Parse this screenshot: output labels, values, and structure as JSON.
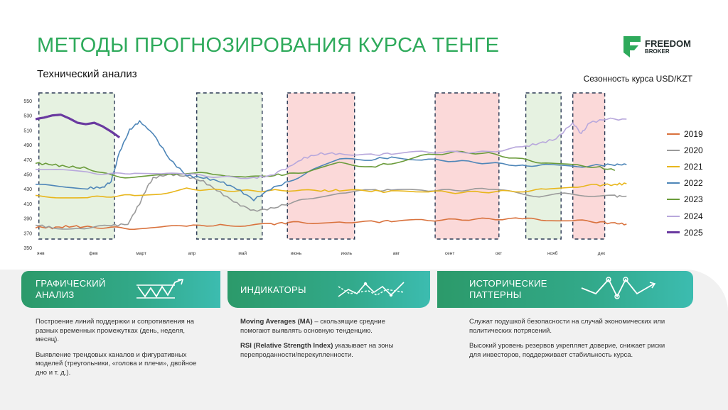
{
  "slide": {
    "title": "МЕТОДЫ ПРОГНОЗИРОВАНИЯ КУРСА ТЕНГЕ",
    "subtitle": "Технический анализ",
    "chart_caption": "Сезонность курса USD/KZT"
  },
  "logo": {
    "line1": "FREEDOM",
    "line2": "BROKER",
    "icon": "freedom-f-icon",
    "color": "#2eaa5b"
  },
  "chart_data": {
    "type": "line",
    "title": "Сезонность курса USD/KZT",
    "ylim": [
      350,
      550
    ],
    "yticks": [
      "350",
      "370",
      "390",
      "410",
      "430",
      "450",
      "470",
      "490",
      "510",
      "530",
      "550"
    ],
    "xlim": [
      0,
      365
    ],
    "xticks": [
      {
        "label": "янв",
        "day": 0
      },
      {
        "label": "фев",
        "day": 31
      },
      {
        "label": "март",
        "day": 59
      },
      {
        "label": "апр",
        "day": 90
      },
      {
        "label": "май",
        "day": 120
      },
      {
        "label": "июнь",
        "day": 151
      },
      {
        "label": "июль",
        "day": 181
      },
      {
        "label": "авг",
        "day": 212
      },
      {
        "label": "сент",
        "day": 243
      },
      {
        "label": "окт",
        "day": 273
      },
      {
        "label": "нояб",
        "day": 304
      },
      {
        "label": "дек",
        "day": 334
      }
    ],
    "shaded_periods": [
      {
        "start": 2,
        "end": 47,
        "type": "green"
      },
      {
        "start": 96,
        "end": 135,
        "type": "green"
      },
      {
        "start": 150,
        "end": 190,
        "type": "red"
      },
      {
        "start": 238,
        "end": 276,
        "type": "red"
      },
      {
        "start": 292,
        "end": 313,
        "type": "green"
      },
      {
        "start": 320,
        "end": 339,
        "type": "red"
      }
    ],
    "series": [
      {
        "name": "2019",
        "color": "#d9723d",
        "x": [
          0,
          10,
          20,
          31,
          45,
          59,
          75,
          90,
          110,
          125,
          140,
          151,
          165,
          181,
          200,
          212,
          230,
          250,
          270,
          290,
          304,
          320,
          334,
          345,
          352
        ],
        "values": [
          378,
          377,
          379,
          378,
          377,
          376,
          378,
          379,
          381,
          380,
          382,
          384,
          384,
          385,
          385,
          386,
          387,
          388,
          389,
          389,
          388,
          387,
          385,
          383,
          382
        ]
      },
      {
        "name": "2020",
        "color": "#9a9a9a",
        "x": [
          0,
          10,
          25,
          45,
          55,
          62,
          66,
          70,
          80,
          90,
          100,
          110,
          120,
          130,
          140,
          151,
          165,
          181,
          200,
          212,
          230,
          250,
          270,
          285,
          300,
          315,
          330,
          345,
          352
        ],
        "values": [
          381,
          377,
          376,
          380,
          382,
          410,
          430,
          445,
          450,
          447,
          440,
          425,
          410,
          400,
          403,
          410,
          418,
          425,
          428,
          428,
          428,
          428,
          430,
          425,
          420,
          423,
          421,
          420,
          420
        ]
      },
      {
        "name": "2021",
        "color": "#e8b61c",
        "x": [
          0,
          15,
          31,
          45,
          59,
          75,
          90,
          110,
          130,
          151,
          170,
          181,
          200,
          212,
          230,
          250,
          270,
          290,
          304,
          320,
          334,
          345,
          352
        ],
        "values": [
          420,
          419,
          418,
          420,
          421,
          424,
          430,
          428,
          427,
          428,
          427,
          428,
          427,
          426,
          427,
          425,
          426,
          427,
          429,
          433,
          435,
          436,
          437
        ]
      },
      {
        "name": "2022",
        "color": "#4e86b8",
        "x": [
          0,
          15,
          31,
          40,
          45,
          50,
          56,
          62,
          70,
          80,
          90,
          100,
          110,
          120,
          130,
          140,
          151,
          165,
          181,
          200,
          212,
          230,
          250,
          270,
          290,
          304,
          320,
          334,
          345,
          352
        ],
        "values": [
          435,
          434,
          431,
          432,
          440,
          480,
          510,
          522,
          505,
          470,
          448,
          445,
          440,
          430,
          415,
          430,
          440,
          455,
          470,
          470,
          473,
          470,
          468,
          465,
          462,
          462,
          460,
          462,
          463,
          463
        ]
      },
      {
        "name": "2023",
        "color": "#6a9b3a",
        "x": [
          0,
          10,
          20,
          31,
          45,
          59,
          75,
          90,
          110,
          125,
          140,
          151,
          165,
          181,
          200,
          212,
          230,
          250,
          270,
          290,
          304,
          320,
          334,
          345
        ],
        "values": [
          465,
          463,
          460,
          458,
          448,
          445,
          448,
          452,
          450,
          445,
          448,
          450,
          455,
          465,
          460,
          465,
          475,
          480,
          478,
          470,
          465,
          462,
          460,
          455
        ]
      },
      {
        "name": "2024",
        "color": "#b8a8dc",
        "x": [
          0,
          15,
          31,
          45,
          59,
          75,
          90,
          110,
          130,
          140,
          151,
          160,
          170,
          181,
          200,
          212,
          230,
          250,
          270,
          290,
          300,
          310,
          320,
          325,
          330,
          340,
          352
        ],
        "values": [
          458,
          455,
          452,
          450,
          452,
          450,
          450,
          446,
          445,
          448,
          460,
          472,
          478,
          478,
          476,
          478,
          480,
          480,
          480,
          487,
          492,
          498,
          520,
          505,
          520,
          525,
          525
        ]
      },
      {
        "name": "2025",
        "color": "#6a3aa0",
        "x": [
          0,
          5,
          10,
          15,
          20,
          25,
          30,
          35,
          40,
          45,
          50
        ],
        "values": [
          525,
          527,
          530,
          531,
          526,
          520,
          518,
          520,
          515,
          508,
          500
        ]
      }
    ]
  },
  "methods": [
    {
      "label_line1": "ГРАФИЧЕСКИЙ",
      "label_line2": "АНАЛИЗ",
      "icon": "chart-breakout-icon",
      "paragraphs": [
        "Построение линий поддержки и сопротивления на разных временных промежутках (день, неделя, месяц).",
        "Выявление трендовых каналов и фигуративных моделей (треугольники, «голова и плечи», двойное дно и т. д.)."
      ]
    },
    {
      "label_line1": "ИНДИКАТОРЫ",
      "label_line2": "",
      "icon": "indicator-lines-icon",
      "paragraphs": [
        {
          "bold": "Moving Averages (MA)",
          "text": " – скользящие средние помогают выявлять основную тенденцию."
        },
        {
          "bold": "RSI (Relative Strength Index)",
          "text": " указывает на зоны перепроданности/перекупленности."
        }
      ]
    },
    {
      "label_line1": "ИСТОРИЧЕСКИЕ",
      "label_line2": "ПАТТЕРНЫ",
      "icon": "pattern-points-icon",
      "paragraphs": [
        "Служат подушкой безопасности на случай экономических или политических потрясений.",
        "Высокий уровень резервов укрепляет доверие, снижает риски для инвесторов, поддерживает стабильность курса."
      ]
    }
  ]
}
